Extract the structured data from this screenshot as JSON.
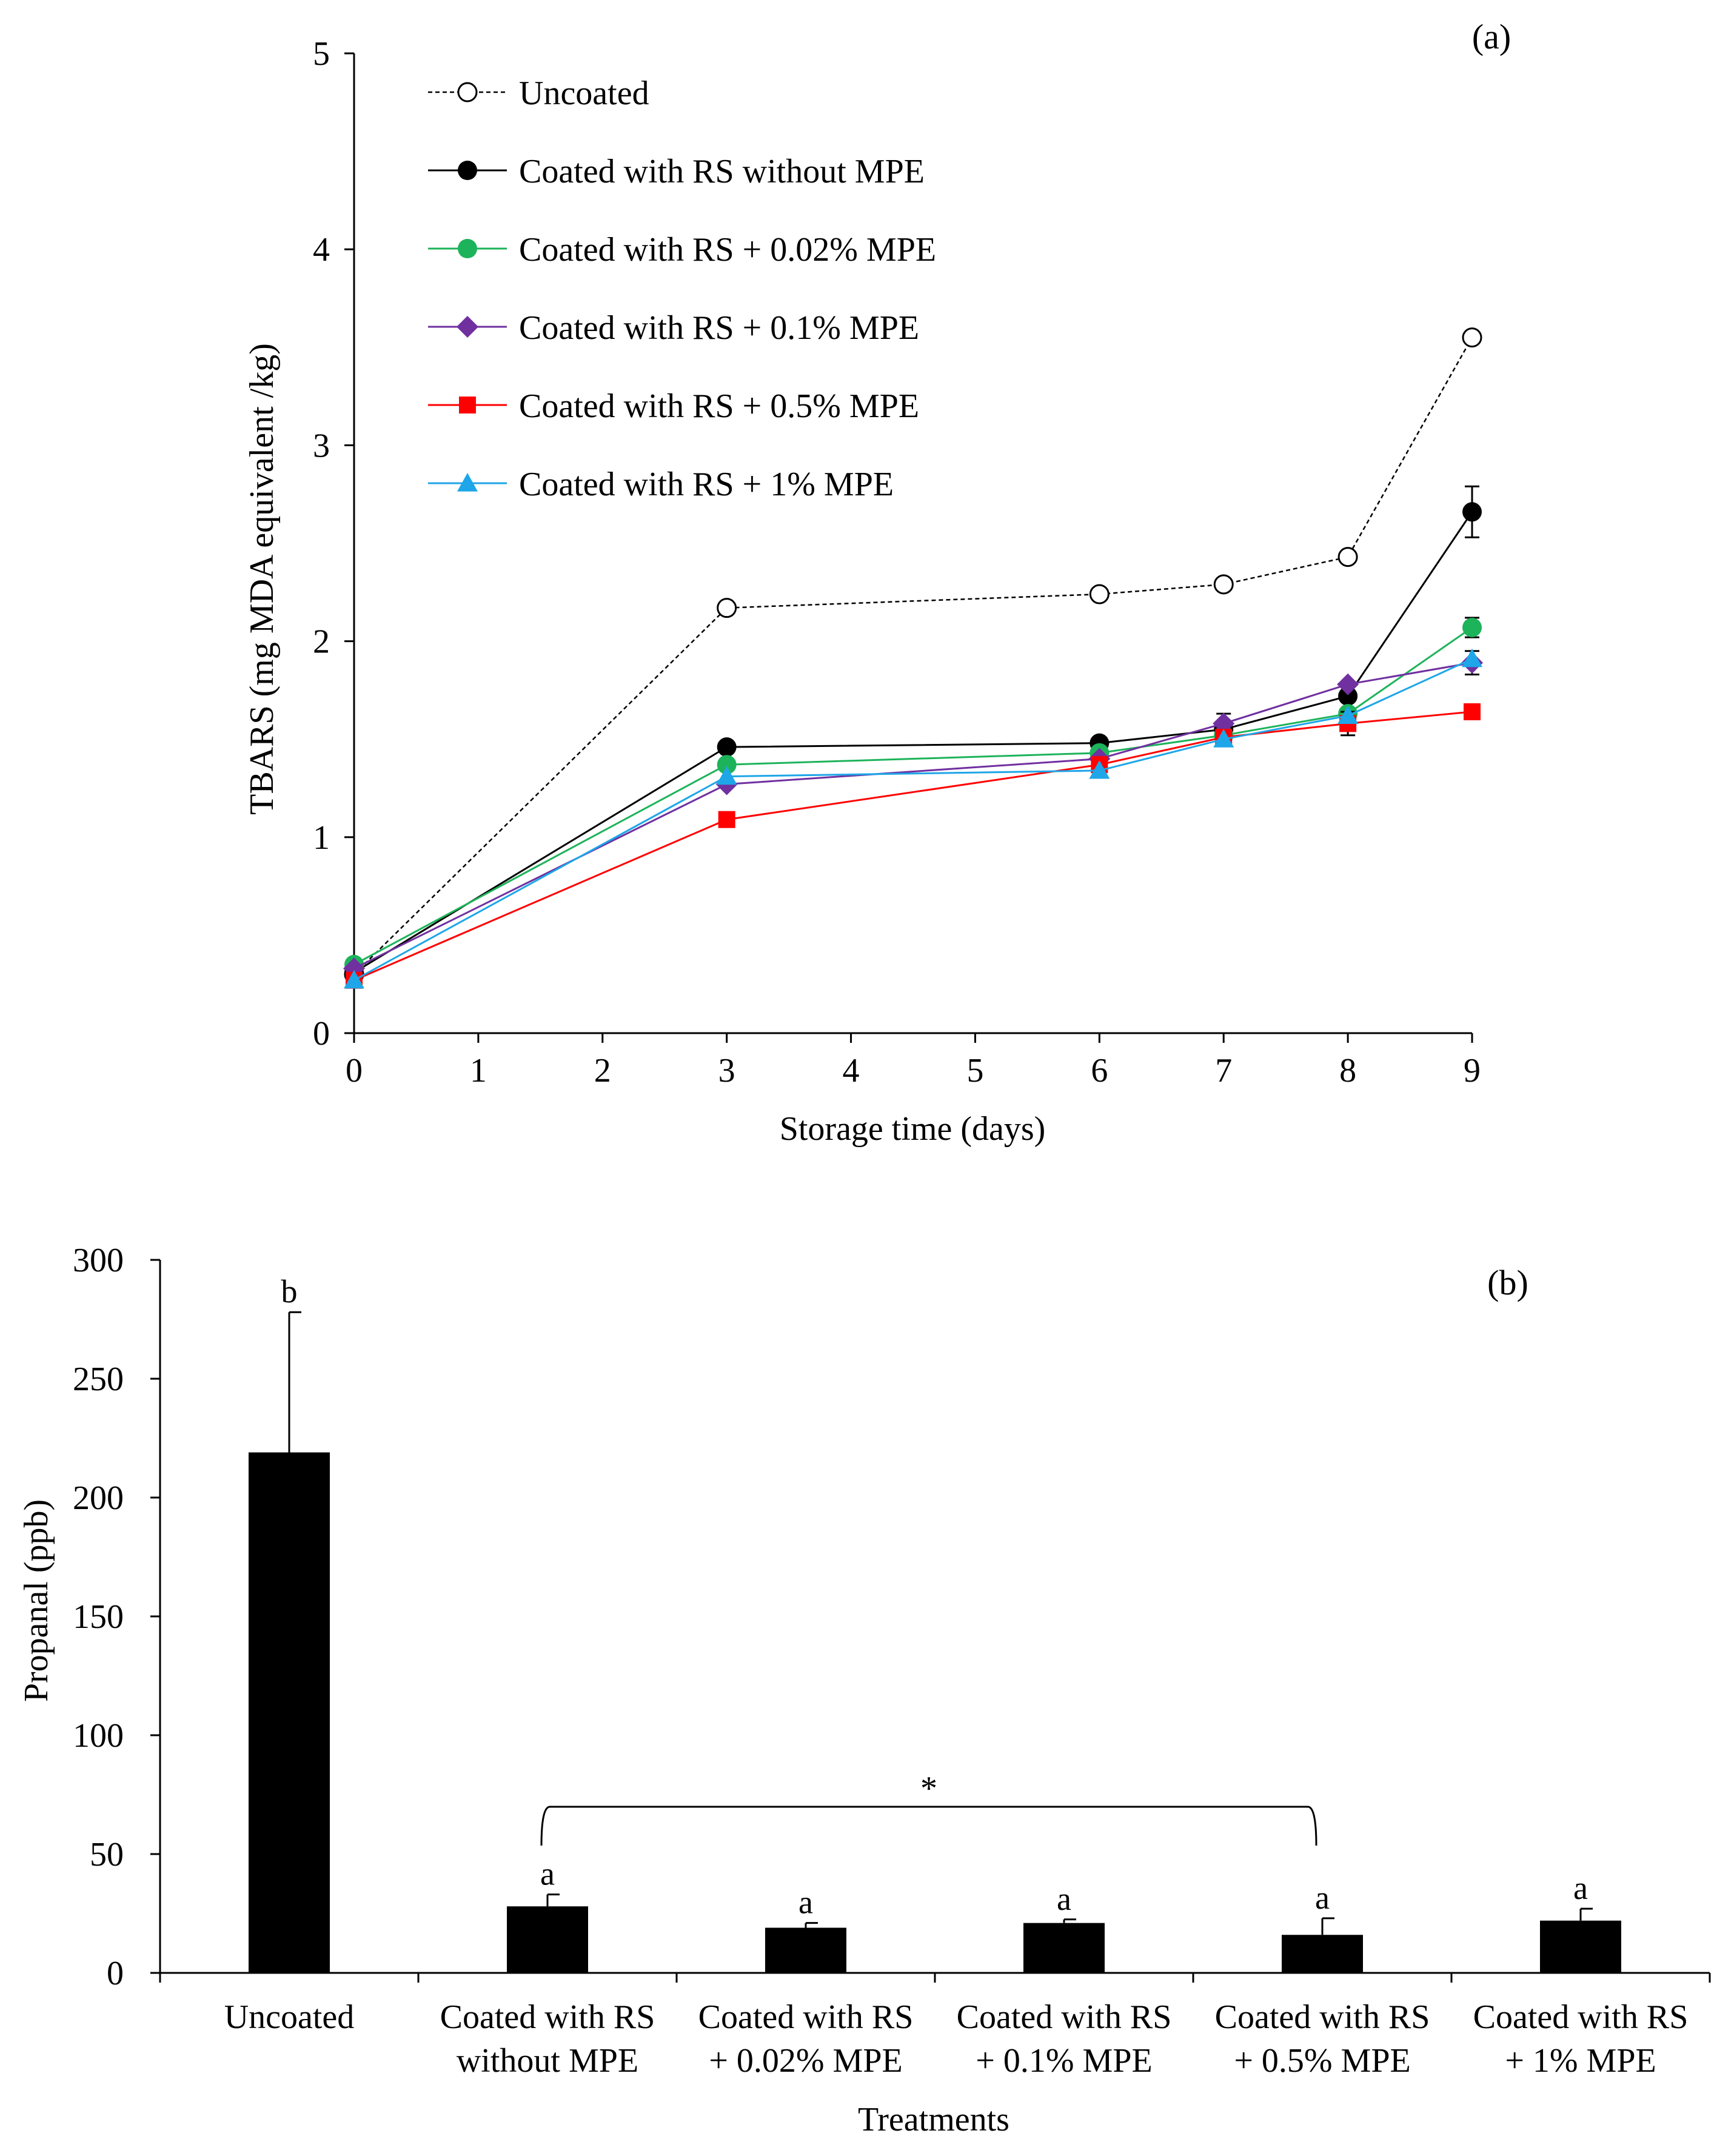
{
  "chart_data": [
    {
      "panel_label": "(a)",
      "type": "line",
      "title": "",
      "xlabel": "Storage time (days)",
      "ylabel": "TBARS (mg MDA equivalent /kg)",
      "xlim": [
        0,
        9
      ],
      "ylim": [
        0,
        5
      ],
      "xticks": [
        0,
        1,
        2,
        3,
        4,
        5,
        6,
        7,
        8,
        9
      ],
      "yticks": [
        0,
        1,
        2,
        3,
        4,
        5
      ],
      "grid": false,
      "legend_position": "top-left",
      "x": [
        0,
        3,
        6,
        7,
        8,
        9
      ],
      "series": [
        {
          "name": "Uncoated",
          "color": "#000000",
          "marker": "open-circle",
          "dashed": true,
          "values": [
            0.3,
            2.17,
            2.24,
            2.29,
            2.43,
            3.55
          ],
          "errors": [
            0,
            0,
            0,
            0,
            0,
            0
          ]
        },
        {
          "name": "Coated with RS without MPE",
          "color": "#000000",
          "marker": "circle",
          "dashed": false,
          "values": [
            0.31,
            1.46,
            1.48,
            1.55,
            1.72,
            2.66
          ],
          "errors": [
            0,
            0,
            0,
            0,
            0,
            0.13
          ]
        },
        {
          "name": "Coated with RS + 0.02% MPE",
          "color": "#1db35a",
          "marker": "circle",
          "dashed": false,
          "values": [
            0.35,
            1.37,
            1.43,
            1.52,
            1.63,
            2.07
          ],
          "errors": [
            0,
            0,
            0,
            0,
            0,
            0.05
          ]
        },
        {
          "name": "Coated with RS + 0.1% MPE",
          "color": "#7030a0",
          "marker": "diamond",
          "dashed": false,
          "values": [
            0.33,
            1.27,
            1.4,
            1.58,
            1.78,
            1.89
          ],
          "errors": [
            0,
            0,
            0,
            0.05,
            0,
            0.06
          ]
        },
        {
          "name": "Coated with RS + 0.5% MPE",
          "color": "#ff0000",
          "marker": "square",
          "dashed": false,
          "values": [
            0.27,
            1.09,
            1.37,
            1.51,
            1.58,
            1.64
          ],
          "errors": [
            0,
            0,
            0,
            0,
            0.06,
            0
          ]
        },
        {
          "name": "Coated with RS + 1% MPE",
          "color": "#1ea6e8",
          "marker": "triangle",
          "dashed": false,
          "values": [
            0.27,
            1.31,
            1.34,
            1.5,
            1.62,
            1.91
          ],
          "errors": [
            0,
            0,
            0,
            0,
            0,
            0
          ]
        }
      ]
    },
    {
      "panel_label": "(b)",
      "type": "bar",
      "title": "",
      "xlabel": "Treatments",
      "ylabel": "Propanal (ppb)",
      "ylim": [
        0,
        300
      ],
      "yticks": [
        0,
        50,
        100,
        150,
        200,
        250,
        300
      ],
      "grid": false,
      "bar_color": "#000000",
      "categories": [
        [
          "Uncoated"
        ],
        [
          "Coated with RS",
          "without MPE"
        ],
        [
          "Coated with RS",
          "+ 0.02% MPE"
        ],
        [
          "Coated with RS",
          "+ 0.1% MPE"
        ],
        [
          "Coated with RS",
          "+ 0.5% MPE"
        ],
        [
          "Coated with RS",
          "+ 1% MPE"
        ]
      ],
      "values": [
        219,
        28,
        19,
        21,
        16,
        22
      ],
      "errors": [
        59,
        5,
        2,
        1.5,
        7,
        5
      ],
      "significance_letters": [
        "b",
        "a",
        "a",
        "a",
        "a",
        "a"
      ],
      "bracket": {
        "from_index": 1,
        "to_index": 4,
        "label": "*"
      }
    }
  ]
}
